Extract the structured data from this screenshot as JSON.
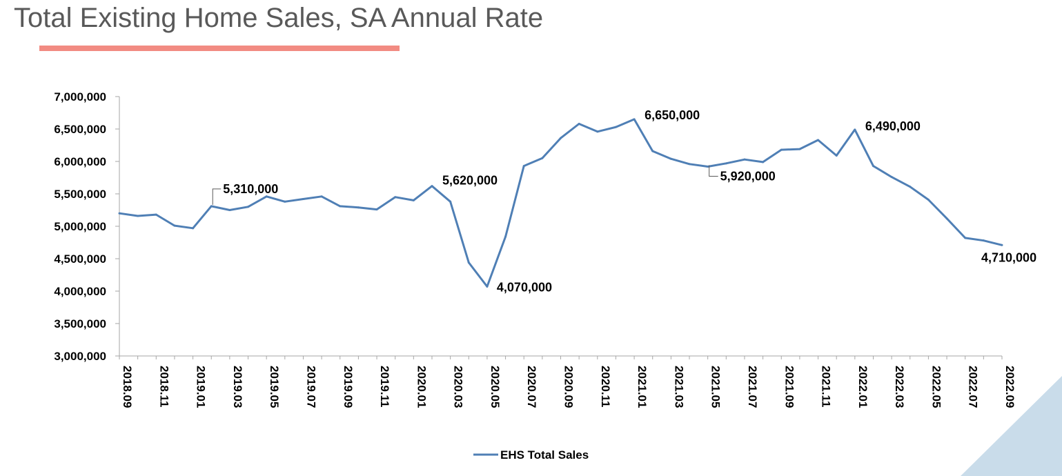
{
  "page": {
    "title": "Total Existing Home Sales, SA Annual Rate",
    "accent_color": "#f28b82",
    "corner_color": "#c9dcea"
  },
  "chart_data": {
    "type": "line",
    "title": "Total Existing Home Sales, SA Annual Rate",
    "xlabel": "",
    "ylabel": "",
    "ylim": [
      3000000,
      7000000
    ],
    "y_ticks": [
      3000000,
      3500000,
      4000000,
      4500000,
      5000000,
      5500000,
      6000000,
      6500000,
      7000000
    ],
    "y_tick_labels": [
      "3,000,000",
      "3,500,000",
      "4,000,000",
      "4,500,000",
      "5,000,000",
      "5,500,000",
      "6,000,000",
      "6,500,000",
      "7,000,000"
    ],
    "x_tick_labels": [
      "2018.09",
      "2018.11",
      "2019.01",
      "2019.03",
      "2019.05",
      "2019.07",
      "2019.09",
      "2019.11",
      "2020.01",
      "2020.03",
      "2020.05",
      "2020.07",
      "2020.09",
      "2020.11",
      "2021.01",
      "2021.03",
      "2021.05",
      "2021.07",
      "2021.09",
      "2021.11",
      "2022.01",
      "2022.03",
      "2022.05",
      "2022.07",
      "2022.09"
    ],
    "grid": false,
    "legend_position": "bottom",
    "series": [
      {
        "name": "EHS Total Sales",
        "color": "#4f7fb5",
        "x": [
          "2018.09",
          "2018.10",
          "2018.11",
          "2018.12",
          "2019.01",
          "2019.02",
          "2019.03",
          "2019.04",
          "2019.05",
          "2019.06",
          "2019.07",
          "2019.08",
          "2019.09",
          "2019.10",
          "2019.11",
          "2019.12",
          "2020.01",
          "2020.02",
          "2020.03",
          "2020.04",
          "2020.05",
          "2020.06",
          "2020.07",
          "2020.08",
          "2020.09",
          "2020.10",
          "2020.11",
          "2020.12",
          "2021.01",
          "2021.02",
          "2021.03",
          "2021.04",
          "2021.05",
          "2021.06",
          "2021.07",
          "2021.08",
          "2021.09",
          "2021.10",
          "2021.11",
          "2021.12",
          "2022.01",
          "2022.02",
          "2022.03",
          "2022.04",
          "2022.05",
          "2022.06",
          "2022.07",
          "2022.08",
          "2022.09"
        ],
        "values": [
          5200000,
          5160000,
          5180000,
          5010000,
          4970000,
          5310000,
          5250000,
          5300000,
          5460000,
          5380000,
          5420000,
          5460000,
          5310000,
          5290000,
          5260000,
          5450000,
          5400000,
          5620000,
          5380000,
          4440000,
          4070000,
          4840000,
          5930000,
          6050000,
          6360000,
          6580000,
          6460000,
          6530000,
          6650000,
          6160000,
          6040000,
          5960000,
          5920000,
          5970000,
          6030000,
          5990000,
          6180000,
          6190000,
          6330000,
          6090000,
          6490000,
          5930000,
          5760000,
          5610000,
          5410000,
          5120000,
          4820000,
          4780000,
          4710000
        ]
      }
    ],
    "annotations": [
      {
        "index": 5,
        "text": "5,310,000"
      },
      {
        "index": 17,
        "text": "5,620,000"
      },
      {
        "index": 20,
        "text": "4,070,000"
      },
      {
        "index": 28,
        "text": "6,650,000"
      },
      {
        "index": 32,
        "text": "5,920,000"
      },
      {
        "index": 40,
        "text": "6,490,000"
      },
      {
        "index": 48,
        "text": "4,710,000"
      }
    ]
  }
}
